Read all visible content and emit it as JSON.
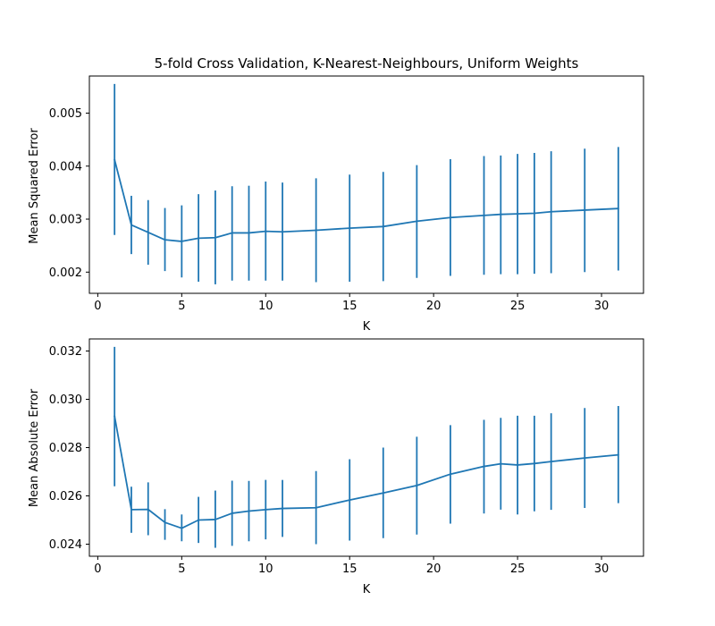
{
  "colors": {
    "series": "#1f77b4",
    "axes": "#000000",
    "background": "#ffffff"
  },
  "chart_data": [
    {
      "type": "line",
      "title": "5-fold Cross Validation, K-Nearest-Neighbours, Uniform Weights",
      "xlabel": "K",
      "ylabel": "Mean Squared Error",
      "xlim": [
        -0.5,
        32.5
      ],
      "ylim": [
        0.0016,
        0.0057
      ],
      "xticks": [
        0,
        5,
        10,
        15,
        20,
        25,
        30
      ],
      "xtick_labels": [
        "0",
        "5",
        "10",
        "15",
        "20",
        "25",
        "30"
      ],
      "yticks": [
        0.002,
        0.003,
        0.004,
        0.005
      ],
      "ytick_labels": [
        "0.002",
        "0.003",
        "0.004",
        "0.005"
      ],
      "grid": false,
      "error_bars": true,
      "series": [
        {
          "x": [
            1,
            2,
            3,
            4,
            5,
            6,
            7,
            8,
            9,
            10,
            11,
            13,
            15,
            17,
            19,
            21,
            23,
            24,
            25,
            26,
            27,
            29,
            31
          ],
          "y": [
            0.00412,
            0.00289,
            0.00275,
            0.00261,
            0.00258,
            0.00264,
            0.00265,
            0.00274,
            0.00274,
            0.00277,
            0.00276,
            0.00279,
            0.00283,
            0.00286,
            0.00296,
            0.00303,
            0.00307,
            0.00309,
            0.0031,
            0.00311,
            0.00314,
            0.00317,
            0.0032
          ],
          "err_low": [
            0.0027,
            0.00234,
            0.00214,
            0.00202,
            0.0019,
            0.00182,
            0.00177,
            0.00184,
            0.00184,
            0.00184,
            0.00184,
            0.00181,
            0.00182,
            0.00183,
            0.00189,
            0.00193,
            0.00195,
            0.00196,
            0.00196,
            0.00197,
            0.00198,
            0.002,
            0.00203
          ],
          "err_high": [
            0.00555,
            0.00344,
            0.00336,
            0.00321,
            0.00326,
            0.00347,
            0.00354,
            0.00362,
            0.00363,
            0.00371,
            0.00369,
            0.00377,
            0.00384,
            0.00389,
            0.00402,
            0.00413,
            0.00419,
            0.0042,
            0.00423,
            0.00425,
            0.00428,
            0.00433,
            0.00436
          ]
        }
      ]
    },
    {
      "type": "line",
      "title": "",
      "xlabel": "K",
      "ylabel": "Mean Absolute Error",
      "xlim": [
        -0.5,
        32.5
      ],
      "ylim": [
        0.0235,
        0.0325
      ],
      "xticks": [
        0,
        5,
        10,
        15,
        20,
        25,
        30
      ],
      "xtick_labels": [
        "0",
        "5",
        "10",
        "15",
        "20",
        "25",
        "30"
      ],
      "yticks": [
        0.024,
        0.026,
        0.028,
        0.03,
        0.032
      ],
      "ytick_labels": [
        "0.024",
        "0.026",
        "0.028",
        "0.030",
        "0.032"
      ],
      "grid": false,
      "error_bars": true,
      "series": [
        {
          "x": [
            1,
            2,
            3,
            4,
            5,
            6,
            7,
            8,
            9,
            10,
            11,
            13,
            15,
            17,
            19,
            21,
            23,
            24,
            25,
            26,
            27,
            29,
            31
          ],
          "y": [
            0.0293,
            0.02543,
            0.02544,
            0.0249,
            0.02466,
            0.025,
            0.02502,
            0.02528,
            0.02537,
            0.02543,
            0.02548,
            0.02551,
            0.02583,
            0.02612,
            0.02643,
            0.0269,
            0.02722,
            0.02733,
            0.02728,
            0.02734,
            0.02742,
            0.02757,
            0.0277
          ],
          "err_low": [
            0.0264,
            0.02447,
            0.02437,
            0.02418,
            0.02412,
            0.02405,
            0.02385,
            0.02393,
            0.02412,
            0.0242,
            0.0243,
            0.024,
            0.02415,
            0.02425,
            0.0244,
            0.02485,
            0.02527,
            0.02543,
            0.02523,
            0.02536,
            0.02542,
            0.0255,
            0.0257
          ],
          "err_high": [
            0.03217,
            0.02638,
            0.02656,
            0.02545,
            0.02523,
            0.02596,
            0.02622,
            0.02663,
            0.02662,
            0.02666,
            0.02666,
            0.02703,
            0.02752,
            0.028,
            0.02845,
            0.02893,
            0.02915,
            0.02923,
            0.02932,
            0.02932,
            0.02942,
            0.02964,
            0.02972
          ]
        }
      ]
    }
  ]
}
